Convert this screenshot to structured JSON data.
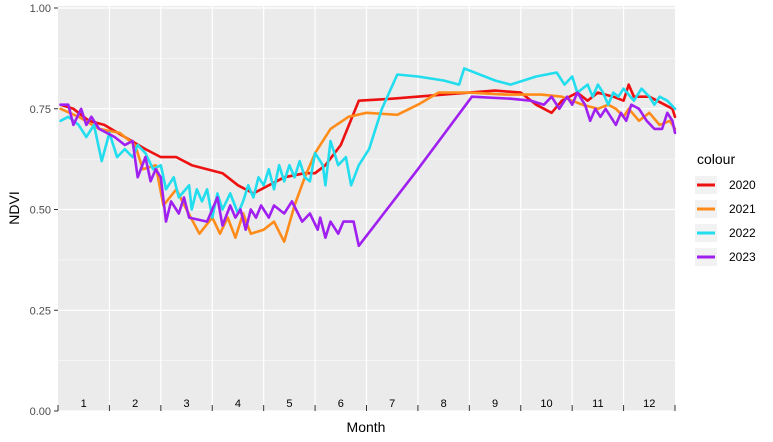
{
  "chart_data": {
    "type": "line",
    "xlabel": "Month",
    "ylabel": "NDVI",
    "ylim": [
      0,
      1
    ],
    "xlim": [
      0,
      12
    ],
    "yticks": [
      0,
      0.25,
      0.5,
      0.75,
      1
    ],
    "ytick_labels": [
      "0.00",
      "0.25",
      "0.50",
      "0.75",
      "1.00"
    ],
    "month_labels": [
      "1",
      "2",
      "3",
      "4",
      "5",
      "6",
      "7",
      "8",
      "9",
      "10",
      "11",
      "12"
    ],
    "grid": true,
    "background": "#ebebeb",
    "legend": {
      "title": "colour",
      "position": "right"
    },
    "series": [
      {
        "name": "2020",
        "color": "#ee1111",
        "points": [
          [
            0.05,
            0.76
          ],
          [
            0.3,
            0.75
          ],
          [
            0.6,
            0.72
          ],
          [
            0.9,
            0.71
          ],
          [
            1.3,
            0.68
          ],
          [
            1.7,
            0.65
          ],
          [
            2.0,
            0.63
          ],
          [
            2.3,
            0.63
          ],
          [
            2.6,
            0.61
          ],
          [
            2.9,
            0.6
          ],
          [
            3.2,
            0.59
          ],
          [
            3.5,
            0.56
          ],
          [
            3.8,
            0.54
          ],
          [
            4.1,
            0.56
          ],
          [
            4.4,
            0.58
          ],
          [
            4.8,
            0.59
          ],
          [
            5.0,
            0.59
          ],
          [
            5.2,
            0.61
          ],
          [
            5.5,
            0.66
          ],
          [
            5.85,
            0.77
          ],
          [
            6.5,
            0.775
          ],
          [
            7.5,
            0.785
          ],
          [
            8.5,
            0.795
          ],
          [
            9.0,
            0.79
          ],
          [
            9.3,
            0.76
          ],
          [
            9.6,
            0.74
          ],
          [
            9.8,
            0.77
          ],
          [
            10.1,
            0.79
          ],
          [
            10.3,
            0.77
          ],
          [
            10.5,
            0.79
          ],
          [
            10.8,
            0.78
          ],
          [
            11.0,
            0.77
          ],
          [
            11.1,
            0.81
          ],
          [
            11.2,
            0.78
          ],
          [
            11.5,
            0.78
          ],
          [
            11.8,
            0.76
          ],
          [
            11.95,
            0.75
          ],
          [
            12.0,
            0.73
          ]
        ]
      },
      {
        "name": "2021",
        "color": "#ff8c1a",
        "points": [
          [
            0.05,
            0.75
          ],
          [
            0.4,
            0.73
          ],
          [
            0.8,
            0.7
          ],
          [
            1.2,
            0.69
          ],
          [
            1.5,
            0.66
          ],
          [
            1.65,
            0.6
          ],
          [
            1.9,
            0.61
          ],
          [
            2.05,
            0.51
          ],
          [
            2.3,
            0.55
          ],
          [
            2.5,
            0.5
          ],
          [
            2.75,
            0.44
          ],
          [
            3.0,
            0.48
          ],
          [
            3.15,
            0.44
          ],
          [
            3.3,
            0.48
          ],
          [
            3.45,
            0.43
          ],
          [
            3.6,
            0.49
          ],
          [
            3.75,
            0.44
          ],
          [
            4.0,
            0.45
          ],
          [
            4.2,
            0.47
          ],
          [
            4.4,
            0.42
          ],
          [
            4.6,
            0.51
          ],
          [
            4.8,
            0.58
          ],
          [
            5.0,
            0.64
          ],
          [
            5.3,
            0.7
          ],
          [
            5.65,
            0.73
          ],
          [
            6.0,
            0.74
          ],
          [
            6.6,
            0.735
          ],
          [
            7.0,
            0.76
          ],
          [
            7.4,
            0.79
          ],
          [
            8.0,
            0.79
          ],
          [
            8.7,
            0.785
          ],
          [
            9.4,
            0.785
          ],
          [
            9.8,
            0.78
          ],
          [
            10.2,
            0.76
          ],
          [
            10.5,
            0.75
          ],
          [
            10.7,
            0.76
          ],
          [
            10.85,
            0.75
          ],
          [
            11.0,
            0.73
          ],
          [
            11.1,
            0.75
          ],
          [
            11.3,
            0.72
          ],
          [
            11.5,
            0.74
          ],
          [
            11.7,
            0.71
          ],
          [
            11.9,
            0.72
          ],
          [
            12.0,
            0.7
          ]
        ]
      },
      {
        "name": "2022",
        "color": "#22ddee",
        "points": [
          [
            0.05,
            0.72
          ],
          [
            0.2,
            0.73
          ],
          [
            0.4,
            0.71
          ],
          [
            0.55,
            0.68
          ],
          [
            0.7,
            0.71
          ],
          [
            0.85,
            0.62
          ],
          [
            1.0,
            0.69
          ],
          [
            1.15,
            0.63
          ],
          [
            1.3,
            0.65
          ],
          [
            1.45,
            0.63
          ],
          [
            1.55,
            0.66
          ],
          [
            1.7,
            0.64
          ],
          [
            1.85,
            0.6
          ],
          [
            2.0,
            0.61
          ],
          [
            2.1,
            0.55
          ],
          [
            2.25,
            0.58
          ],
          [
            2.35,
            0.53
          ],
          [
            2.55,
            0.56
          ],
          [
            2.6,
            0.5
          ],
          [
            2.7,
            0.55
          ],
          [
            2.8,
            0.52
          ],
          [
            2.9,
            0.55
          ],
          [
            3.0,
            0.48
          ],
          [
            3.1,
            0.54
          ],
          [
            3.2,
            0.5
          ],
          [
            3.35,
            0.54
          ],
          [
            3.5,
            0.49
          ],
          [
            3.6,
            0.52
          ],
          [
            3.7,
            0.56
          ],
          [
            3.8,
            0.53
          ],
          [
            3.9,
            0.58
          ],
          [
            4.0,
            0.56
          ],
          [
            4.1,
            0.6
          ],
          [
            4.2,
            0.55
          ],
          [
            4.3,
            0.61
          ],
          [
            4.4,
            0.57
          ],
          [
            4.5,
            0.61
          ],
          [
            4.6,
            0.58
          ],
          [
            4.7,
            0.62
          ],
          [
            4.8,
            0.58
          ],
          [
            4.9,
            0.57
          ],
          [
            5.0,
            0.64
          ],
          [
            5.15,
            0.61
          ],
          [
            5.2,
            0.56
          ],
          [
            5.3,
            0.67
          ],
          [
            5.45,
            0.61
          ],
          [
            5.6,
            0.63
          ],
          [
            5.7,
            0.56
          ],
          [
            5.85,
            0.61
          ],
          [
            6.05,
            0.65
          ],
          [
            6.3,
            0.75
          ],
          [
            6.6,
            0.835
          ],
          [
            7.0,
            0.83
          ],
          [
            7.5,
            0.82
          ],
          [
            7.8,
            0.81
          ],
          [
            7.9,
            0.85
          ],
          [
            8.5,
            0.82
          ],
          [
            8.8,
            0.81
          ],
          [
            9.3,
            0.83
          ],
          [
            9.7,
            0.84
          ],
          [
            9.85,
            0.81
          ],
          [
            10.0,
            0.83
          ],
          [
            10.1,
            0.79
          ],
          [
            10.3,
            0.81
          ],
          [
            10.4,
            0.78
          ],
          [
            10.5,
            0.81
          ],
          [
            10.6,
            0.79
          ],
          [
            10.7,
            0.76
          ],
          [
            10.8,
            0.79
          ],
          [
            10.9,
            0.78
          ],
          [
            11.0,
            0.8
          ],
          [
            11.2,
            0.77
          ],
          [
            11.35,
            0.8
          ],
          [
            11.5,
            0.78
          ],
          [
            11.6,
            0.76
          ],
          [
            11.7,
            0.78
          ],
          [
            11.85,
            0.77
          ],
          [
            12.0,
            0.75
          ]
        ]
      },
      {
        "name": "2023",
        "color": "#a020f0",
        "points": [
          [
            0.05,
            0.76
          ],
          [
            0.2,
            0.76
          ],
          [
            0.3,
            0.71
          ],
          [
            0.45,
            0.75
          ],
          [
            0.55,
            0.71
          ],
          [
            0.65,
            0.73
          ],
          [
            0.8,
            0.7
          ],
          [
            0.95,
            0.69
          ],
          [
            1.1,
            0.68
          ],
          [
            1.3,
            0.66
          ],
          [
            1.45,
            0.67
          ],
          [
            1.55,
            0.58
          ],
          [
            1.7,
            0.63
          ],
          [
            1.8,
            0.57
          ],
          [
            1.9,
            0.6
          ],
          [
            2.0,
            0.58
          ],
          [
            2.1,
            0.47
          ],
          [
            2.2,
            0.52
          ],
          [
            2.35,
            0.49
          ],
          [
            2.45,
            0.53
          ],
          [
            2.55,
            0.48
          ],
          [
            2.9,
            0.47
          ],
          [
            3.1,
            0.53
          ],
          [
            3.2,
            0.46
          ],
          [
            3.35,
            0.51
          ],
          [
            3.45,
            0.48
          ],
          [
            3.55,
            0.5
          ],
          [
            3.65,
            0.45
          ],
          [
            3.75,
            0.5
          ],
          [
            3.85,
            0.48
          ],
          [
            3.95,
            0.51
          ],
          [
            4.1,
            0.48
          ],
          [
            4.2,
            0.51
          ],
          [
            4.4,
            0.49
          ],
          [
            4.55,
            0.52
          ],
          [
            4.75,
            0.47
          ],
          [
            4.9,
            0.49
          ],
          [
            5.05,
            0.45
          ],
          [
            5.1,
            0.48
          ],
          [
            5.2,
            0.43
          ],
          [
            5.3,
            0.47
          ],
          [
            5.45,
            0.44
          ],
          [
            5.55,
            0.47
          ],
          [
            5.75,
            0.47
          ],
          [
            5.85,
            0.41
          ],
          [
            7.0,
            0.6
          ],
          [
            8.05,
            0.78
          ],
          [
            8.8,
            0.775
          ],
          [
            9.2,
            0.77
          ],
          [
            9.45,
            0.76
          ],
          [
            9.6,
            0.78
          ],
          [
            9.75,
            0.75
          ],
          [
            9.9,
            0.78
          ],
          [
            10.0,
            0.76
          ],
          [
            10.1,
            0.79
          ],
          [
            10.25,
            0.76
          ],
          [
            10.35,
            0.72
          ],
          [
            10.45,
            0.75
          ],
          [
            10.55,
            0.73
          ],
          [
            10.65,
            0.75
          ],
          [
            10.75,
            0.73
          ],
          [
            10.85,
            0.71
          ],
          [
            10.95,
            0.74
          ],
          [
            11.05,
            0.72
          ],
          [
            11.15,
            0.76
          ],
          [
            11.3,
            0.75
          ],
          [
            11.45,
            0.72
          ],
          [
            11.6,
            0.7
          ],
          [
            11.75,
            0.7
          ],
          [
            11.85,
            0.74
          ],
          [
            11.95,
            0.72
          ],
          [
            12.0,
            0.69
          ]
        ]
      }
    ]
  }
}
